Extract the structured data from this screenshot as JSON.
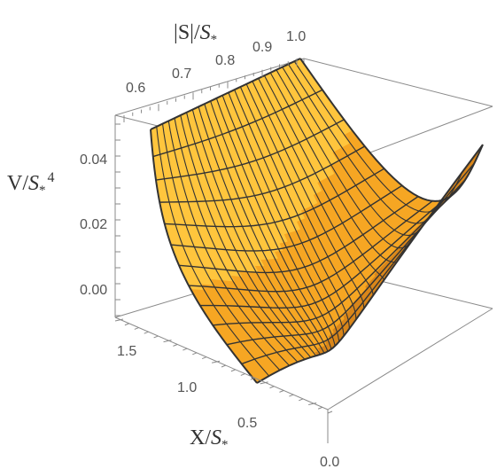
{
  "colors": {
    "surface_fill": "#F6A623",
    "surface_fill_light": "#FFC53D",
    "surface_fill_dark": "#D9861A",
    "mesh_line": "#333333",
    "box_line": "#8a8a8a"
  },
  "chart_data": {
    "type": "surface3d",
    "title": "",
    "axes": {
      "s": {
        "label": "|S|/S*",
        "ticks": [
          "0.6",
          "0.7",
          "0.8",
          "0.9",
          "1.0"
        ],
        "range": [
          0.55,
          1.0
        ]
      },
      "v": {
        "label": "V/S*⁴",
        "ticks": [
          "0.00",
          "0.02",
          "0.04"
        ],
        "range": [
          -0.01,
          0.05
        ]
      },
      "x": {
        "label": "X/S*",
        "ticks": [
          "0.0",
          "0.5",
          "1.0",
          "1.5"
        ],
        "range": [
          0.0,
          1.8
        ]
      }
    },
    "surface": {
      "mesh_lines_along_s": 25,
      "mesh_lines_along_x": 12,
      "minimum": {
        "s": 1.0,
        "x": 0.0,
        "v": 0.0
      },
      "corners": [
        {
          "s": 0.55,
          "x": 1.8,
          "v": 0.042
        },
        {
          "s": 1.0,
          "x": 1.8,
          "v": 0.05
        },
        {
          "s": 1.0,
          "x": 0.0,
          "v": 0.0
        },
        {
          "s": 0.55,
          "x": 0.0,
          "v": 0.035
        }
      ]
    },
    "grid": false,
    "boxed": true
  }
}
